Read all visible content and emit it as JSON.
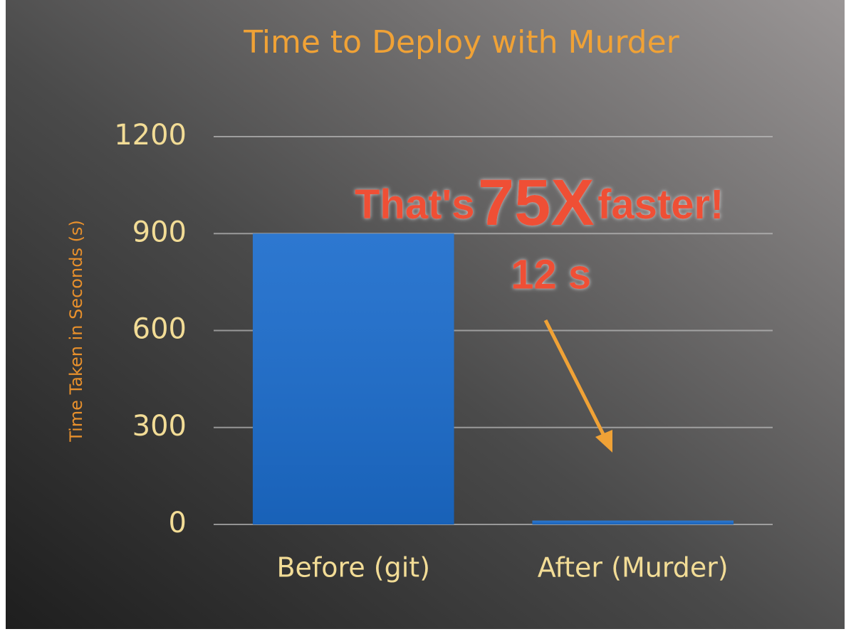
{
  "chart_data": {
    "type": "bar",
    "title": "Time to Deploy with Murder",
    "y_label": "Time Taken in Seconds (s)",
    "categories": [
      "Before (git)",
      "After (Murder)"
    ],
    "values": [
      900,
      12
    ],
    "value_labels": [
      null,
      "12 s"
    ],
    "color": "#1b6ccc",
    "ylim": [
      0,
      1200
    ],
    "yticks": [
      0,
      300,
      600,
      900,
      1200
    ],
    "grid": true,
    "annotation": [
      "That's",
      "75X",
      "faster!"
    ]
  }
}
